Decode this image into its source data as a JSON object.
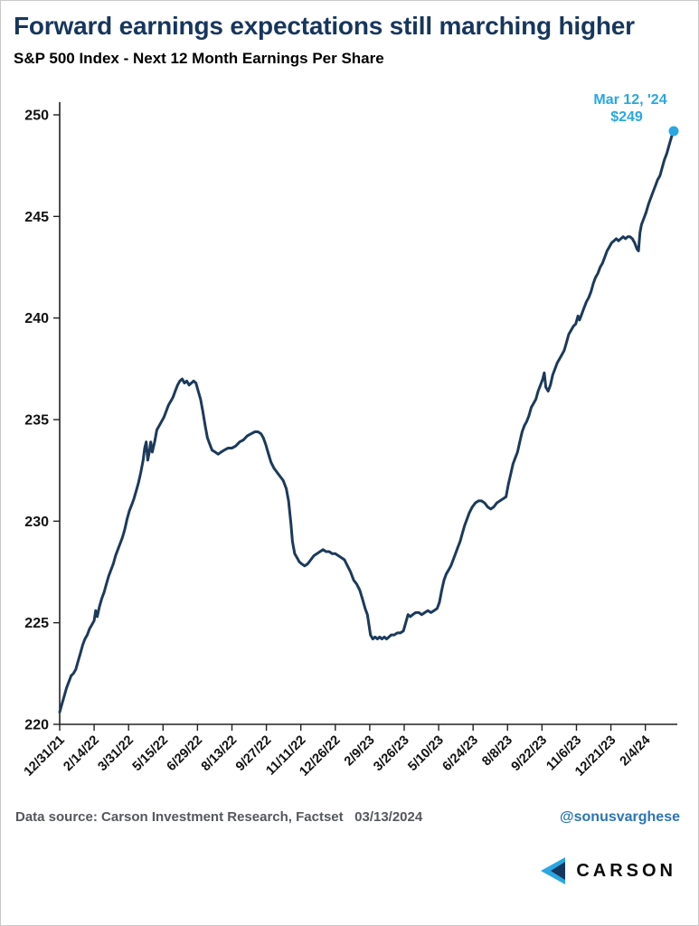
{
  "header": {
    "title": "Forward earnings expectations still marching higher",
    "subtitle": "S&P 500 Index - Next 12 Month Earnings Per Share"
  },
  "annotation": {
    "line1": "Mar 12, '24",
    "line2": "$249"
  },
  "footer": {
    "source": "Data source: Carson Investment Research, Factset   03/13/2024",
    "handle": "@sonusvarghese",
    "logo_text": "CARSON"
  },
  "colors": {
    "title": "#17365d",
    "line": "#1b3a5c",
    "accent": "#2aa7e1",
    "handle": "#2e74b5",
    "source": "#54575c",
    "axis": "#222222",
    "tick_label": "#111111"
  },
  "chart_data": {
    "type": "line",
    "title": "Forward earnings expectations still marching higher",
    "subtitle": "S&P 500 Index - Next 12 Month Earnings Per Share",
    "xlabel": "",
    "ylabel": "",
    "ylim": [
      220,
      250
    ],
    "y_ticks": [
      220,
      225,
      230,
      235,
      240,
      245,
      250
    ],
    "x_max": 802,
    "grid": false,
    "legend": "none",
    "x_ticks": [
      {
        "d": 0,
        "label": "12/31/21"
      },
      {
        "d": 45,
        "label": "2/14/22"
      },
      {
        "d": 90,
        "label": "3/31/22"
      },
      {
        "d": 135,
        "label": "5/15/22"
      },
      {
        "d": 180,
        "label": "6/29/22"
      },
      {
        "d": 225,
        "label": "8/13/22"
      },
      {
        "d": 270,
        "label": "9/27/22"
      },
      {
        "d": 315,
        "label": "11/11/22"
      },
      {
        "d": 360,
        "label": "12/26/22"
      },
      {
        "d": 405,
        "label": "2/9/23"
      },
      {
        "d": 450,
        "label": "3/26/23"
      },
      {
        "d": 495,
        "label": "5/10/23"
      },
      {
        "d": 540,
        "label": "6/24/23"
      },
      {
        "d": 585,
        "label": "8/8/23"
      },
      {
        "d": 630,
        "label": "9/22/23"
      },
      {
        "d": 675,
        "label": "11/6/23"
      },
      {
        "d": 720,
        "label": "12/21/23"
      },
      {
        "d": 765,
        "label": "2/4/24"
      }
    ],
    "end_point": {
      "date": "Mar 12, '24",
      "value": 249
    },
    "series": [
      {
        "name": "S&P 500 Next 12 Month EPS",
        "points": [
          [
            0,
            220.6
          ],
          [
            3,
            221.0
          ],
          [
            6,
            221.4
          ],
          [
            9,
            221.8
          ],
          [
            12,
            222.1
          ],
          [
            15,
            222.4
          ],
          [
            18,
            222.5
          ],
          [
            21,
            222.7
          ],
          [
            24,
            223.1
          ],
          [
            27,
            223.5
          ],
          [
            30,
            223.9
          ],
          [
            33,
            224.2
          ],
          [
            36,
            224.4
          ],
          [
            39,
            224.7
          ],
          [
            42,
            224.9
          ],
          [
            45,
            225.1
          ],
          [
            47,
            225.6
          ],
          [
            49,
            225.3
          ],
          [
            52,
            225.8
          ],
          [
            55,
            226.2
          ],
          [
            58,
            226.5
          ],
          [
            61,
            226.9
          ],
          [
            64,
            227.3
          ],
          [
            67,
            227.6
          ],
          [
            70,
            227.9
          ],
          [
            73,
            228.3
          ],
          [
            76,
            228.6
          ],
          [
            79,
            228.9
          ],
          [
            82,
            229.2
          ],
          [
            85,
            229.6
          ],
          [
            88,
            230.1
          ],
          [
            91,
            230.5
          ],
          [
            94,
            230.8
          ],
          [
            97,
            231.1
          ],
          [
            100,
            231.5
          ],
          [
            103,
            231.9
          ],
          [
            106,
            232.4
          ],
          [
            109,
            233.0
          ],
          [
            111,
            233.6
          ],
          [
            113,
            233.9
          ],
          [
            115,
            233.0
          ],
          [
            117,
            233.4
          ],
          [
            119,
            233.9
          ],
          [
            121,
            233.4
          ],
          [
            124,
            233.9
          ],
          [
            127,
            234.5
          ],
          [
            130,
            234.7
          ],
          [
            133,
            234.9
          ],
          [
            136,
            235.1
          ],
          [
            139,
            235.4
          ],
          [
            142,
            235.7
          ],
          [
            145,
            235.9
          ],
          [
            148,
            236.1
          ],
          [
            151,
            236.4
          ],
          [
            154,
            236.7
          ],
          [
            157,
            236.9
          ],
          [
            160,
            237.0
          ],
          [
            163,
            236.8
          ],
          [
            166,
            236.9
          ],
          [
            169,
            236.7
          ],
          [
            172,
            236.8
          ],
          [
            175,
            236.9
          ],
          [
            178,
            236.8
          ],
          [
            181,
            236.4
          ],
          [
            184,
            236.0
          ],
          [
            187,
            235.4
          ],
          [
            190,
            234.7
          ],
          [
            193,
            234.1
          ],
          [
            196,
            233.8
          ],
          [
            199,
            233.5
          ],
          [
            203,
            233.4
          ],
          [
            207,
            233.3
          ],
          [
            211,
            233.4
          ],
          [
            215,
            233.5
          ],
          [
            220,
            233.6
          ],
          [
            225,
            233.6
          ],
          [
            230,
            233.7
          ],
          [
            235,
            233.9
          ],
          [
            240,
            234.0
          ],
          [
            245,
            234.2
          ],
          [
            250,
            234.3
          ],
          [
            255,
            234.4
          ],
          [
            259,
            234.4
          ],
          [
            263,
            234.3
          ],
          [
            266,
            234.1
          ],
          [
            269,
            233.8
          ],
          [
            272,
            233.4
          ],
          [
            276,
            232.9
          ],
          [
            280,
            232.6
          ],
          [
            284,
            232.4
          ],
          [
            288,
            232.2
          ],
          [
            292,
            232.0
          ],
          [
            296,
            231.6
          ],
          [
            299,
            231.0
          ],
          [
            302,
            229.9
          ],
          [
            304,
            229.0
          ],
          [
            307,
            228.4
          ],
          [
            310,
            228.2
          ],
          [
            313,
            228.0
          ],
          [
            316,
            227.9
          ],
          [
            320,
            227.8
          ],
          [
            324,
            227.9
          ],
          [
            328,
            228.1
          ],
          [
            332,
            228.3
          ],
          [
            336,
            228.4
          ],
          [
            340,
            228.5
          ],
          [
            344,
            228.6
          ],
          [
            348,
            228.5
          ],
          [
            352,
            228.5
          ],
          [
            356,
            228.4
          ],
          [
            360,
            228.4
          ],
          [
            364,
            228.3
          ],
          [
            368,
            228.2
          ],
          [
            372,
            228.1
          ],
          [
            376,
            227.8
          ],
          [
            380,
            227.5
          ],
          [
            384,
            227.1
          ],
          [
            388,
            226.9
          ],
          [
            392,
            226.6
          ],
          [
            396,
            226.1
          ],
          [
            399,
            225.7
          ],
          [
            402,
            225.4
          ],
          [
            404,
            224.9
          ],
          [
            406,
            224.4
          ],
          [
            409,
            224.2
          ],
          [
            412,
            224.3
          ],
          [
            415,
            224.2
          ],
          [
            418,
            224.3
          ],
          [
            421,
            224.2
          ],
          [
            424,
            224.3
          ],
          [
            427,
            224.2
          ],
          [
            430,
            224.3
          ],
          [
            433,
            224.4
          ],
          [
            437,
            224.4
          ],
          [
            441,
            224.5
          ],
          [
            445,
            224.5
          ],
          [
            449,
            224.6
          ],
          [
            452,
            225.0
          ],
          [
            455,
            225.4
          ],
          [
            458,
            225.3
          ],
          [
            461,
            225.4
          ],
          [
            465,
            225.5
          ],
          [
            469,
            225.5
          ],
          [
            473,
            225.4
          ],
          [
            477,
            225.5
          ],
          [
            481,
            225.6
          ],
          [
            485,
            225.5
          ],
          [
            489,
            225.6
          ],
          [
            493,
            225.7
          ],
          [
            496,
            226.0
          ],
          [
            499,
            226.6
          ],
          [
            502,
            227.1
          ],
          [
            505,
            227.4
          ],
          [
            508,
            227.6
          ],
          [
            511,
            227.8
          ],
          [
            514,
            228.1
          ],
          [
            517,
            228.4
          ],
          [
            520,
            228.7
          ],
          [
            523,
            229.0
          ],
          [
            526,
            229.4
          ],
          [
            529,
            229.8
          ],
          [
            532,
            230.1
          ],
          [
            535,
            230.4
          ],
          [
            539,
            230.7
          ],
          [
            543,
            230.9
          ],
          [
            547,
            231.0
          ],
          [
            551,
            231.0
          ],
          [
            555,
            230.9
          ],
          [
            559,
            230.7
          ],
          [
            563,
            230.6
          ],
          [
            567,
            230.7
          ],
          [
            571,
            230.9
          ],
          [
            575,
            231.0
          ],
          [
            579,
            231.1
          ],
          [
            583,
            231.2
          ],
          [
            586,
            231.8
          ],
          [
            589,
            232.3
          ],
          [
            592,
            232.8
          ],
          [
            595,
            233.1
          ],
          [
            598,
            233.4
          ],
          [
            601,
            233.9
          ],
          [
            604,
            234.4
          ],
          [
            607,
            234.7
          ],
          [
            610,
            234.9
          ],
          [
            613,
            235.2
          ],
          [
            616,
            235.6
          ],
          [
            619,
            235.8
          ],
          [
            622,
            236.0
          ],
          [
            625,
            236.4
          ],
          [
            628,
            236.7
          ],
          [
            631,
            237.0
          ],
          [
            633,
            237.3
          ],
          [
            635,
            236.6
          ],
          [
            638,
            236.4
          ],
          [
            641,
            236.7
          ],
          [
            644,
            237.2
          ],
          [
            647,
            237.5
          ],
          [
            650,
            237.8
          ],
          [
            653,
            238.0
          ],
          [
            656,
            238.2
          ],
          [
            659,
            238.4
          ],
          [
            662,
            238.8
          ],
          [
            665,
            239.2
          ],
          [
            668,
            239.4
          ],
          [
            671,
            239.6
          ],
          [
            674,
            239.7
          ],
          [
            677,
            240.1
          ],
          [
            679,
            239.9
          ],
          [
            682,
            240.2
          ],
          [
            685,
            240.5
          ],
          [
            688,
            240.8
          ],
          [
            691,
            241.0
          ],
          [
            694,
            241.3
          ],
          [
            697,
            241.7
          ],
          [
            700,
            242.0
          ],
          [
            703,
            242.2
          ],
          [
            706,
            242.5
          ],
          [
            709,
            242.7
          ],
          [
            712,
            243.0
          ],
          [
            715,
            243.3
          ],
          [
            718,
            243.5
          ],
          [
            721,
            243.7
          ],
          [
            724,
            243.8
          ],
          [
            727,
            243.9
          ],
          [
            730,
            243.8
          ],
          [
            733,
            243.9
          ],
          [
            736,
            244.0
          ],
          [
            739,
            243.9
          ],
          [
            742,
            244.0
          ],
          [
            745,
            244.0
          ],
          [
            748,
            243.9
          ],
          [
            751,
            243.7
          ],
          [
            754,
            243.4
          ],
          [
            756,
            243.3
          ],
          [
            758,
            244.2
          ],
          [
            760,
            244.6
          ],
          [
            763,
            244.9
          ],
          [
            766,
            245.2
          ],
          [
            769,
            245.6
          ],
          [
            772,
            245.9
          ],
          [
            775,
            246.2
          ],
          [
            778,
            246.5
          ],
          [
            781,
            246.8
          ],
          [
            784,
            247.0
          ],
          [
            787,
            247.4
          ],
          [
            790,
            247.8
          ],
          [
            793,
            248.1
          ],
          [
            796,
            248.5
          ],
          [
            799,
            248.9
          ],
          [
            802,
            249.2
          ]
        ]
      }
    ]
  }
}
